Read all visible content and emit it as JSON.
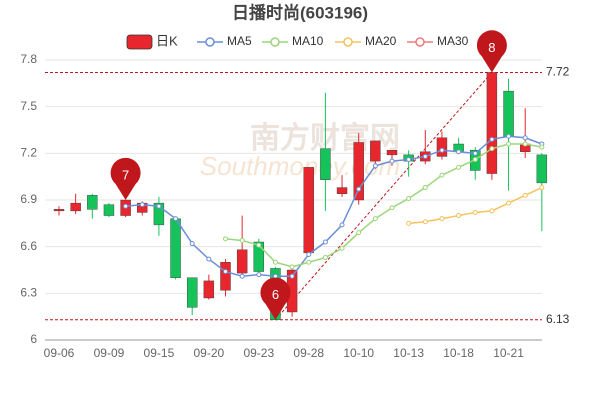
{
  "chart_data": {
    "type": "candlestick",
    "title": "日播时尚(603196)",
    "watermark": [
      "南方财富网",
      "Southmoney.com"
    ],
    "categories": [
      "09-06",
      null,
      null,
      "09-09",
      null,
      null,
      "09-15",
      null,
      null,
      "09-20",
      null,
      null,
      "09-23",
      null,
      null,
      "09-28",
      null,
      null,
      "10-10",
      null,
      null,
      "10-13",
      null,
      null,
      "10-18",
      null,
      null,
      "10-21",
      null,
      null
    ],
    "candles": {
      "name": "日K",
      "up_color": "#e8262e",
      "down_color": "#16c35a",
      "open": [
        6.83,
        6.83,
        6.93,
        6.87,
        6.8,
        6.82,
        6.88,
        6.78,
        6.4,
        6.27,
        6.32,
        6.43,
        6.63,
        6.46,
        6.18,
        6.56,
        7.23,
        6.94,
        6.9,
        7.15,
        7.19,
        7.19,
        7.15,
        7.18,
        7.26,
        7.22,
        7.07,
        7.6,
        7.21,
        7.19
      ],
      "close": [
        6.84,
        6.88,
        6.84,
        6.8,
        6.9,
        6.88,
        6.74,
        6.4,
        6.21,
        6.38,
        6.5,
        6.58,
        6.44,
        6.13,
        6.45,
        7.11,
        7.03,
        6.98,
        7.27,
        7.28,
        7.22,
        7.15,
        7.21,
        7.3,
        7.21,
        7.09,
        7.72,
        7.31,
        7.26,
        7.01
      ],
      "high": [
        6.86,
        6.94,
        6.94,
        6.88,
        6.9,
        6.89,
        6.92,
        6.78,
        6.4,
        6.42,
        6.52,
        6.8,
        6.65,
        6.47,
        6.47,
        7.11,
        7.59,
        7.06,
        7.33,
        7.28,
        7.22,
        7.22,
        7.35,
        7.34,
        7.3,
        7.24,
        7.72,
        7.68,
        7.49,
        7.2
      ],
      "low": [
        6.8,
        6.81,
        6.78,
        6.79,
        6.79,
        6.8,
        6.67,
        6.39,
        6.16,
        6.26,
        6.28,
        6.42,
        6.43,
        6.13,
        6.15,
        6.55,
        6.83,
        6.92,
        6.87,
        7.1,
        7.12,
        7.05,
        7.13,
        7.16,
        7.2,
        7.03,
        7.03,
        6.96,
        7.17,
        6.7
      ]
    },
    "series": [
      {
        "name": "MA5",
        "color": "#6b8fd6",
        "values": [
          null,
          null,
          null,
          null,
          6.86,
          6.87,
          6.86,
          6.78,
          6.62,
          6.52,
          6.44,
          6.41,
          6.42,
          6.41,
          6.41,
          6.55,
          6.63,
          6.74,
          6.97,
          7.12,
          7.15,
          7.16,
          7.18,
          7.22,
          7.21,
          7.2,
          7.29,
          7.31,
          7.3,
          7.26
        ]
      },
      {
        "name": "MA10",
        "color": "#9bd67a",
        "values": [
          null,
          null,
          null,
          null,
          null,
          null,
          null,
          null,
          null,
          null,
          6.65,
          6.64,
          6.61,
          6.5,
          6.47,
          6.5,
          6.53,
          6.59,
          6.69,
          6.78,
          6.85,
          6.91,
          6.98,
          7.06,
          7.11,
          7.16,
          7.23,
          7.26,
          7.26,
          7.24
        ]
      },
      {
        "name": "MA20",
        "color": "#f5c25c",
        "values": [
          null,
          null,
          null,
          null,
          null,
          null,
          null,
          null,
          null,
          null,
          null,
          null,
          null,
          null,
          null,
          null,
          null,
          null,
          null,
          null,
          null,
          6.75,
          6.76,
          6.78,
          6.8,
          6.82,
          6.83,
          6.88,
          6.93,
          6.98
        ]
      },
      {
        "name": "MA30",
        "color": "#f07a7a",
        "values": [
          null,
          null,
          null,
          null,
          null,
          null,
          null,
          null,
          null,
          null,
          null,
          null,
          null,
          null,
          null,
          null,
          null,
          null,
          null,
          null,
          null,
          null,
          null,
          null,
          null,
          null,
          null,
          null,
          null,
          null
        ]
      }
    ],
    "ref_lines": [
      7.72,
      6.13
    ],
    "ref_color": "#c0171d",
    "pins": [
      {
        "label": "7",
        "index": 4,
        "value": 6.9
      },
      {
        "label": "6",
        "index": 13,
        "value": 6.13
      },
      {
        "label": "8",
        "index": 26,
        "value": 7.72
      }
    ],
    "ylim": [
      6,
      7.8
    ],
    "yticks": [
      6,
      6.3,
      6.6,
      6.9,
      7.2,
      7.5,
      7.8
    ],
    "grid": true
  }
}
